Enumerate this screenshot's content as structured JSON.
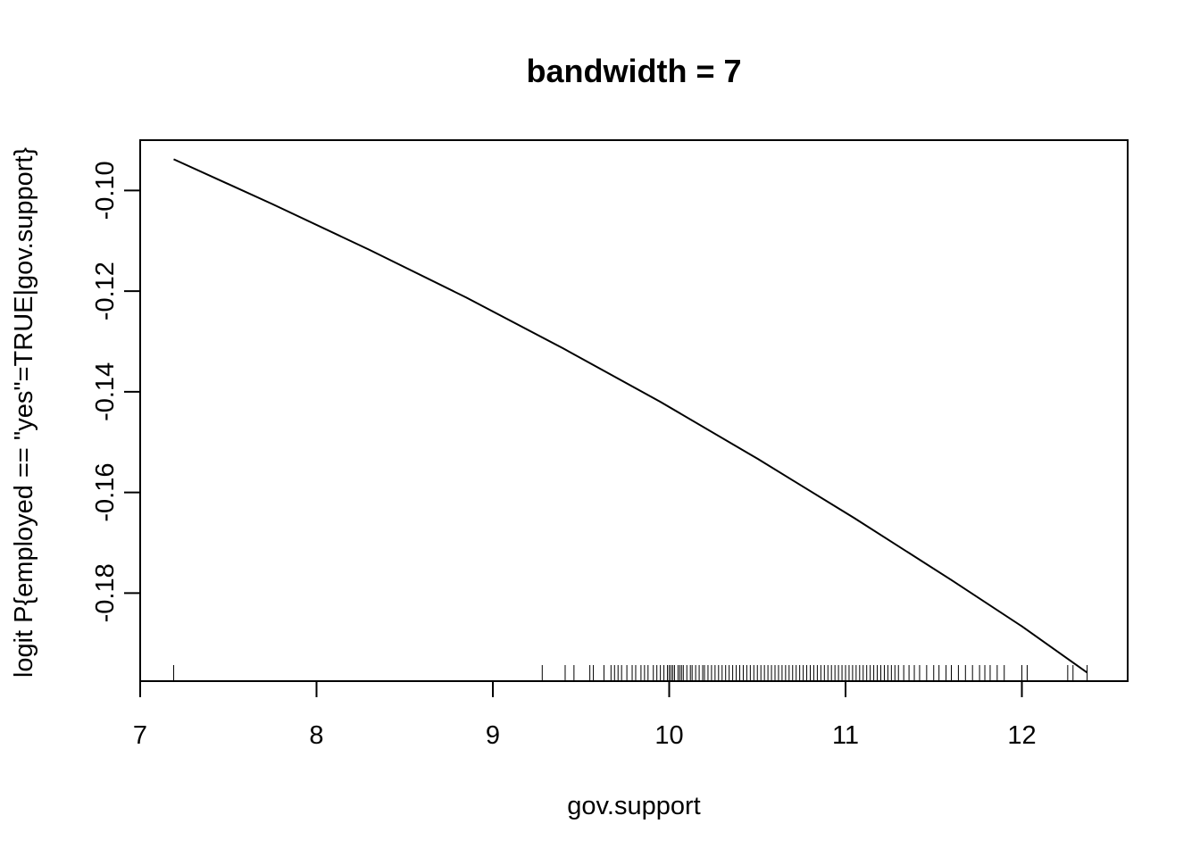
{
  "chart_data": {
    "type": "line",
    "title": "bandwidth = 7",
    "xlabel": "gov.support",
    "ylabel": "logit P{employed == \"yes\"=TRUE|gov.support}",
    "xlim": [
      7.0,
      12.6
    ],
    "ylim": [
      -0.1975,
      -0.09
    ],
    "x_ticks": [
      7,
      8,
      9,
      10,
      11,
      12
    ],
    "x_tick_labels": [
      "7",
      "8",
      "9",
      "10",
      "11",
      "12"
    ],
    "y_ticks": [
      -0.1,
      -0.12,
      -0.14,
      -0.16,
      -0.18
    ],
    "y_tick_labels": [
      "-0.10",
      "-0.12",
      "-0.14",
      "-0.16",
      "-0.18"
    ],
    "grid": false,
    "legend": "none",
    "series": [
      {
        "x": [
          7.19,
          7.75,
          8.3,
          8.85,
          9.4,
          9.95,
          10.5,
          11.05,
          11.6,
          12.0,
          12.37
        ],
        "y": [
          -0.0938,
          -0.1027,
          -0.1118,
          -0.1213,
          -0.1314,
          -0.142,
          -0.1533,
          -0.1651,
          -0.1774,
          -0.1866,
          -0.1958
        ],
        "color": "#000000"
      }
    ],
    "rug": {
      "x": [
        7.19,
        9.28,
        9.41,
        9.46,
        9.55,
        9.57,
        9.63,
        9.67,
        9.69,
        9.71,
        9.73,
        9.76,
        9.79,
        9.81,
        9.84,
        9.86,
        9.88,
        9.91,
        9.93,
        9.95,
        9.97,
        9.99,
        10.0,
        10.01,
        10.02,
        10.03,
        10.05,
        10.06,
        10.07,
        10.08,
        10.1,
        10.12,
        10.13,
        10.15,
        10.17,
        10.19,
        10.2,
        10.22,
        10.24,
        10.26,
        10.28,
        10.3,
        10.32,
        10.34,
        10.36,
        10.38,
        10.4,
        10.42,
        10.44,
        10.46,
        10.48,
        10.5,
        10.52,
        10.54,
        10.56,
        10.58,
        10.6,
        10.62,
        10.64,
        10.66,
        10.68,
        10.7,
        10.72,
        10.74,
        10.76,
        10.78,
        10.8,
        10.82,
        10.84,
        10.86,
        10.88,
        10.9,
        10.92,
        10.94,
        10.96,
        10.98,
        11.0,
        11.02,
        11.04,
        11.06,
        11.08,
        11.1,
        11.12,
        11.14,
        11.16,
        11.18,
        11.2,
        11.22,
        11.24,
        11.26,
        11.28,
        11.3,
        11.33,
        11.36,
        11.39,
        11.42,
        11.46,
        11.5,
        11.53,
        11.57,
        11.6,
        11.64,
        11.68,
        11.72,
        11.76,
        11.79,
        11.82,
        11.86,
        11.9,
        12.0,
        12.03,
        12.26,
        12.29,
        12.37
      ],
      "color": "#000000"
    }
  }
}
